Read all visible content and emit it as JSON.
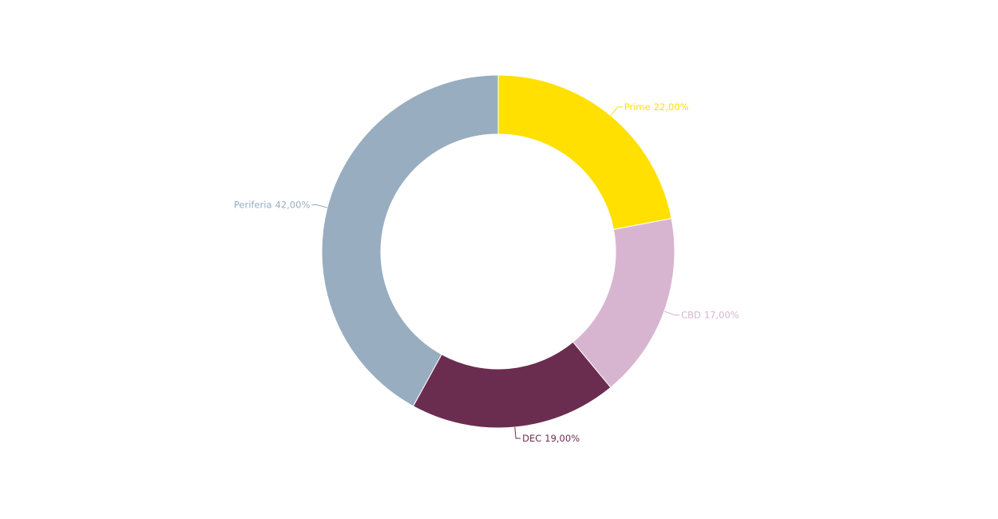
{
  "chart_data": {
    "type": "donut",
    "categories": [
      "Prime",
      "CBD",
      "DEC",
      "Periferia"
    ],
    "values": [
      22,
      17,
      19,
      42
    ],
    "value_labels": [
      "22,00%",
      "17,00%",
      "19,00%",
      "42,00%"
    ],
    "colors": [
      "#ffe000",
      "#d7b5d0",
      "#6b2d4f",
      "#98adc0"
    ]
  }
}
